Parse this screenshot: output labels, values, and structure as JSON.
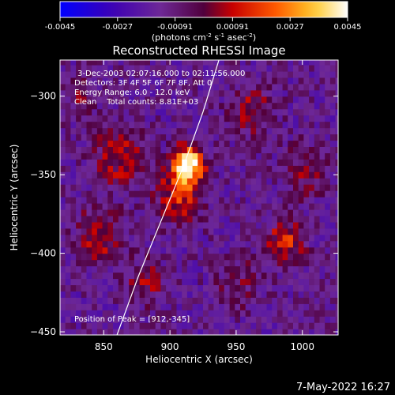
{
  "chart_data": {
    "type": "heatmap",
    "title": "Reconstructed RHESSI Image",
    "xlabel": "Heliocentric X (arcsec)",
    "ylabel": "Heliocentric Y (arcsec)",
    "xlim": [
      817,
      1027
    ],
    "ylim": [
      -452,
      -277
    ],
    "xticks": [
      850,
      900,
      950,
      1000
    ],
    "yticks": [
      -300,
      -350,
      -400,
      -450
    ],
    "colorbar": {
      "min": -0.0045,
      "max": 0.0045,
      "ticks": [
        "-0.0045",
        "-0.0027",
        "-0.00091",
        "0.00091",
        "0.0027",
        "0.0045"
      ],
      "unit_label": "(photons cm",
      "unit_exp1": "-2",
      "unit_mid": " s",
      "unit_exp2": "-1",
      "unit_mid2": " asec",
      "unit_exp3": "-2",
      "unit_end": ")",
      "colormap": "Rainbow-like: blue-purple-red-orange-yellow-white"
    },
    "annotations": {
      "time": "3-Dec-2003 02:07:16.000 to 02:11:56.000",
      "detectors": "Detectors: 3F 4F 5F 6F 7F 8F, Att 0",
      "energy": "Energy Range: 6.0 - 12.0 keV",
      "clean": "Clean    Total counts: 8.81E+03",
      "peak": "Position of Peak = [912,-345]"
    },
    "peak": {
      "x": 912,
      "y": -345
    },
    "limb_curve": [
      {
        "x": 937,
        "y": -277
      },
      {
        "x": 925,
        "y": -310
      },
      {
        "x": 910,
        "y": -345
      },
      {
        "x": 893,
        "y": -380
      },
      {
        "x": 876,
        "y": -415
      },
      {
        "x": 860,
        "y": -452
      }
    ],
    "sources": [
      {
        "x": 912,
        "y": -345,
        "amp": 1.0,
        "sigma": 8
      },
      {
        "x": 905,
        "y": -365,
        "amp": 0.45,
        "sigma": 12
      },
      {
        "x": 860,
        "y": -340,
        "amp": 0.35,
        "sigma": 14
      },
      {
        "x": 845,
        "y": -390,
        "amp": 0.4,
        "sigma": 12
      },
      {
        "x": 880,
        "y": -420,
        "amp": 0.3,
        "sigma": 10
      },
      {
        "x": 960,
        "y": -310,
        "amp": 0.3,
        "sigma": 12
      },
      {
        "x": 985,
        "y": -395,
        "amp": 0.45,
        "sigma": 10
      },
      {
        "x": 1000,
        "y": -350,
        "amp": 0.25,
        "sigma": 12
      },
      {
        "x": 830,
        "y": -300,
        "amp": 0.2,
        "sigma": 10
      },
      {
        "x": 950,
        "y": -420,
        "amp": 0.2,
        "sigma": 12
      }
    ]
  },
  "footer": {
    "date": "7-May-2022 16:27"
  }
}
